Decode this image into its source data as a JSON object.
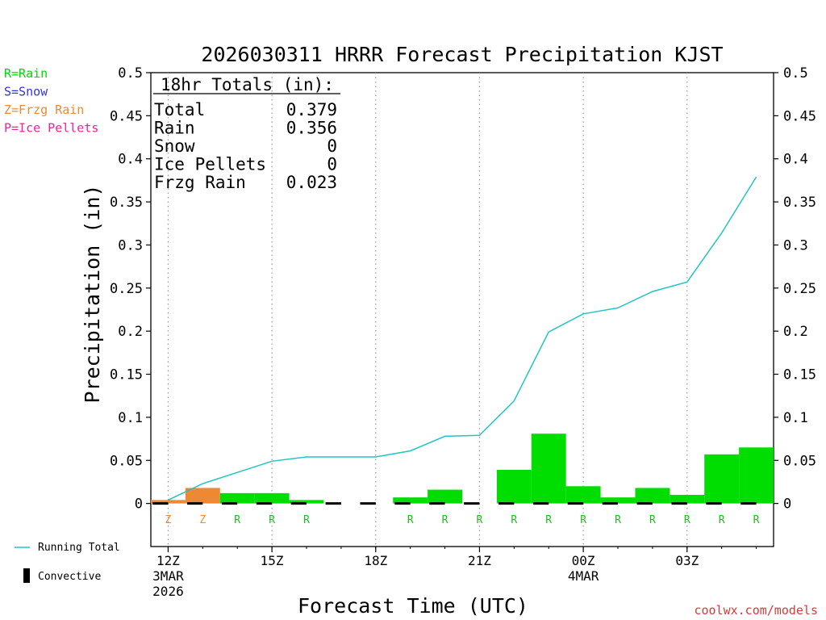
{
  "chart_data": {
    "type": "bar",
    "title": "2026030311 HRRR Forecast Precipitation KJST",
    "xlabel": "Forecast Time (UTC)",
    "ylabel": "Precipitation (in)",
    "ylim": [
      -0.05,
      0.5
    ],
    "yticks": [
      0,
      0.05,
      0.1,
      0.15,
      0.2,
      0.25,
      0.3,
      0.35,
      0.4,
      0.45,
      0.5
    ],
    "ytick_labels": [
      "0",
      "0.05",
      "0.1",
      "0.15",
      "0.2",
      "0.25",
      "0.3",
      "0.35",
      "0.4",
      "0.45",
      "0.5"
    ],
    "xlim_hours": [
      11.5,
      29.5
    ],
    "xticks": [
      {
        "hour": 12,
        "lines": [
          "12Z",
          "3MAR",
          "2026"
        ]
      },
      {
        "hour": 15,
        "lines": [
          "15Z"
        ]
      },
      {
        "hour": 18,
        "lines": [
          "18Z"
        ]
      },
      {
        "hour": 21,
        "lines": [
          "21Z"
        ]
      },
      {
        "hour": 24,
        "lines": [
          "00Z",
          "4MAR"
        ]
      },
      {
        "hour": 27,
        "lines": [
          "03Z"
        ]
      }
    ],
    "grid": "vertical dotted at major ticks",
    "hours": [
      12,
      13,
      14,
      15,
      16,
      17,
      18,
      19,
      20,
      21,
      22,
      23,
      24,
      25,
      26,
      27,
      28,
      29
    ],
    "hourly_precip": [
      0.004,
      0.018,
      0.012,
      0.012,
      0.004,
      0.0,
      0.0,
      0.007,
      0.016,
      0.0,
      0.039,
      0.081,
      0.02,
      0.007,
      0.018,
      0.01,
      0.057,
      0.065
    ],
    "precip_type": [
      "Z",
      "Z",
      "R",
      "R",
      "R",
      "",
      "",
      "R",
      "R",
      "R",
      "R",
      "R",
      "R",
      "R",
      "R",
      "R",
      "R",
      "R"
    ],
    "running_total_series": {
      "name": "Running Total",
      "x": [
        12,
        13,
        14,
        15,
        16,
        17,
        18,
        19,
        20,
        21,
        22,
        23,
        24,
        25,
        26,
        27,
        28,
        29
      ],
      "values": [
        0.004,
        0.023,
        0.036,
        0.049,
        0.054,
        0.054,
        0.054,
        0.061,
        0.078,
        0.079,
        0.119,
        0.199,
        0.22,
        0.227,
        0.246,
        0.257,
        0.314,
        0.379
      ]
    },
    "convective_name": "Convective",
    "type_legend": [
      {
        "label": "R=Rain",
        "color": "#00d800"
      },
      {
        "label": "S=Snow",
        "color": "#3333dd"
      },
      {
        "label": "Z=Frzg Rain",
        "color": "#ee8833"
      },
      {
        "label": "P=Ice Pellets",
        "color": "#ee2299"
      }
    ],
    "type_colors": {
      "R": "#00dd00",
      "Z": "#ee8833",
      "S": "#3333dd",
      "P": "#ee2299"
    },
    "type_label_colors": {
      "R": "#22bb22",
      "Z": "#ee8833",
      "S": "#3333dd",
      "P": "#ee2299"
    },
    "line_color": "#22c4c4",
    "totals_box": {
      "title": "18hr Totals (in):",
      "rows": [
        {
          "label": "Total",
          "value": "0.379"
        },
        {
          "label": "Rain",
          "value": "0.356"
        },
        {
          "label": "Snow",
          "value": "0"
        },
        {
          "label": "Ice Pellets",
          "value": "0"
        },
        {
          "label": "Frzg Rain",
          "value": "0.023"
        }
      ]
    },
    "credit": "coolwx.com/models"
  }
}
